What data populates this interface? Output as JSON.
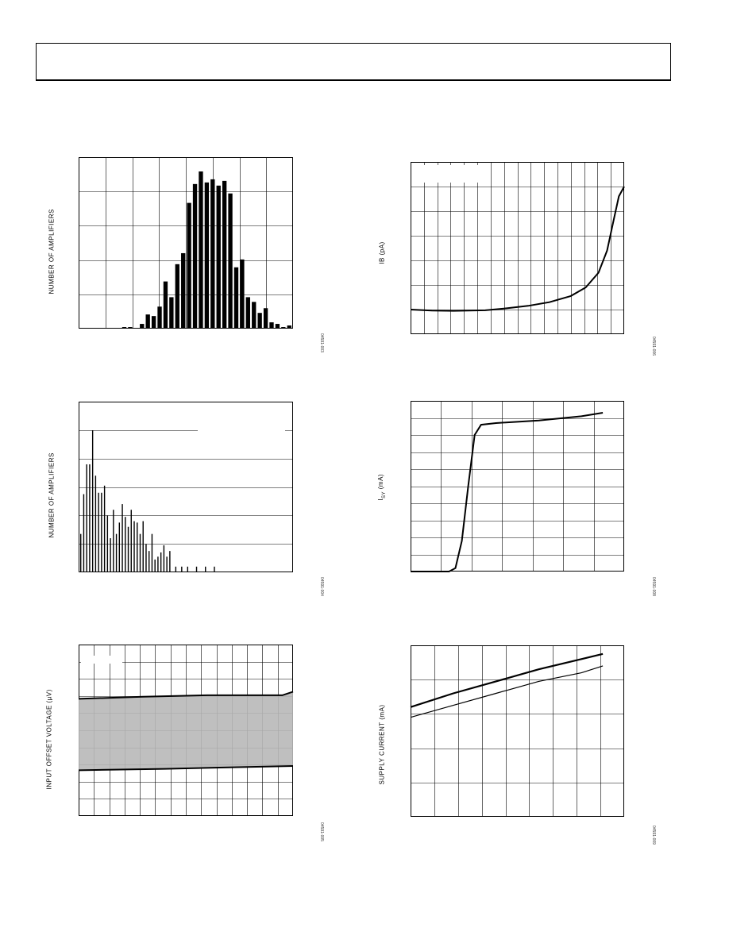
{
  "header": {
    "text": ""
  },
  "figures": [
    {
      "id": "fig1",
      "ylabel": "NUMBER OF AMPLIFIERS",
      "fig_id": "04591-003"
    },
    {
      "id": "fig2",
      "ylabel": "IB (pA)",
      "fig_id": "04591-006"
    },
    {
      "id": "fig3",
      "ylabel": "NUMBER OF AMPLIFIERS",
      "fig_id": "04591-004"
    },
    {
      "id": "fig4",
      "ylabel": "I",
      "ylabel_sub": "SY",
      "ylabel_rest": " (mA)",
      "fig_id": "04591-008"
    },
    {
      "id": "fig5",
      "ylabel": "INPUT OFFSET VOLTAGE (µV)",
      "fig_id": "04591-005"
    },
    {
      "id": "fig6",
      "ylabel": "SUPPLY CURRENT (mA)",
      "fig_id": "04591-009"
    }
  ],
  "chart_data": [
    {
      "type": "bar",
      "id": "fig1",
      "ylim": [
        0,
        100
      ],
      "values": [
        0,
        0,
        1,
        1,
        0,
        3,
        9,
        8,
        14,
        30,
        20,
        41,
        48,
        80,
        92,
        100,
        93,
        95,
        91,
        94,
        86,
        39,
        44,
        20,
        17,
        10,
        13,
        4,
        3,
        1,
        2
      ]
    },
    {
      "type": "line",
      "id": "fig2",
      "ylim": [
        0,
        7
      ],
      "points": [
        [
          0,
          1
        ],
        [
          0.1,
          0.96
        ],
        [
          0.2,
          0.95
        ],
        [
          0.35,
          0.97
        ],
        [
          0.45,
          1.05
        ],
        [
          0.55,
          1.15
        ],
        [
          0.65,
          1.3
        ],
        [
          0.75,
          1.55
        ],
        [
          0.82,
          1.9
        ],
        [
          0.88,
          2.5
        ],
        [
          0.92,
          3.4
        ],
        [
          0.95,
          4.6
        ],
        [
          0.975,
          5.6
        ],
        [
          1.0,
          6.0
        ]
      ]
    },
    {
      "type": "bar",
      "id": "fig3",
      "ylim": [
        0,
        100
      ],
      "values": [
        27,
        55,
        76,
        76,
        100,
        68,
        56,
        56,
        61,
        40,
        24,
        44,
        27,
        35,
        48,
        39,
        32,
        44,
        36,
        35,
        27,
        36,
        20,
        15,
        27,
        9,
        11,
        14,
        19,
        11,
        15,
        0,
        4,
        0,
        4,
        0,
        4,
        0,
        0,
        4,
        0,
        0,
        4,
        0,
        0,
        4
      ]
    },
    {
      "type": "line",
      "id": "fig4",
      "ylim": [
        0,
        10
      ],
      "points": [
        [
          0,
          0
        ],
        [
          0.18,
          0
        ],
        [
          0.21,
          0.2
        ],
        [
          0.24,
          1.8
        ],
        [
          0.27,
          5
        ],
        [
          0.3,
          8
        ],
        [
          0.33,
          8.6
        ],
        [
          0.4,
          8.7
        ],
        [
          0.6,
          8.85
        ],
        [
          0.8,
          9.1
        ],
        [
          0.9,
          9.3
        ]
      ]
    },
    {
      "type": "area",
      "id": "fig5",
      "ylim": [
        0,
        12
      ],
      "upper": [
        [
          0,
          8.2
        ],
        [
          0.3,
          8.35
        ],
        [
          0.6,
          8.45
        ],
        [
          0.95,
          8.45
        ],
        [
          1.0,
          8.7
        ]
      ],
      "lower": [
        [
          0,
          3.2
        ],
        [
          0.4,
          3.3
        ],
        [
          0.7,
          3.4
        ],
        [
          1.0,
          3.5
        ]
      ]
    },
    {
      "type": "line",
      "id": "fig6",
      "ylim": [
        0,
        5
      ],
      "series": [
        {
          "points": [
            [
              0,
              3.2
            ],
            [
              0.2,
              3.6
            ],
            [
              0.4,
              3.95
            ],
            [
              0.6,
              4.3
            ],
            [
              0.8,
              4.6
            ],
            [
              0.9,
              4.75
            ]
          ]
        },
        {
          "points": [
            [
              0,
              2.9
            ],
            [
              0.2,
              3.25
            ],
            [
              0.4,
              3.6
            ],
            [
              0.6,
              3.95
            ],
            [
              0.8,
              4.2
            ],
            [
              0.9,
              4.4
            ]
          ]
        }
      ]
    }
  ]
}
